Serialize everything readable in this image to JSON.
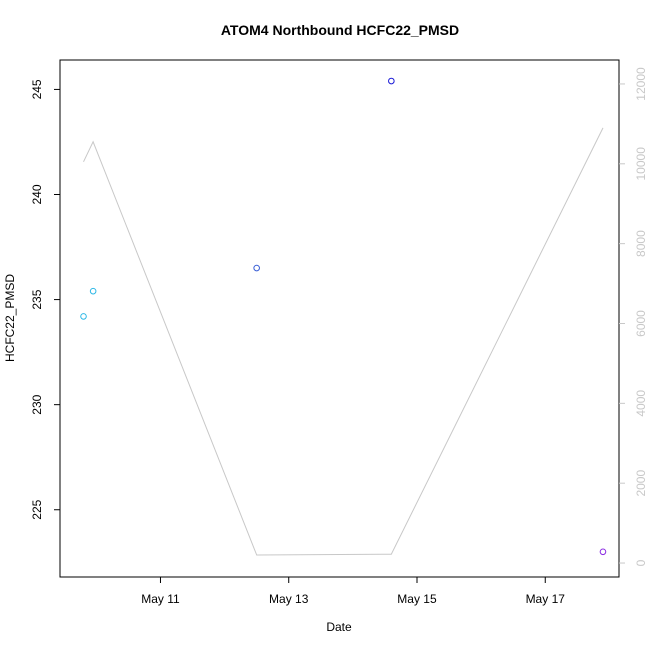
{
  "chart_data": {
    "type": "scatter",
    "title": "ATOM4 Northbound HCFC22_PMSD",
    "xlabel": "Date",
    "ylabel": "HCFC22_PMSD",
    "x_ticks": [
      "May 11",
      "May 13",
      "May 15",
      "May 17"
    ],
    "x_tick_values": [
      "2024-05-11",
      "2024-05-13",
      "2024-05-15",
      "2024-05-17"
    ],
    "y_ticks": [
      225,
      230,
      235,
      240,
      245
    ],
    "y2_ticks": [
      0,
      2000,
      4000,
      6000,
      8000,
      10000,
      12000
    ],
    "ylim": [
      221.8,
      246.4
    ],
    "y2lim": [
      -350,
      12600
    ],
    "xlim": [
      "2024-05-09T10:24",
      "2024-05-18T03:36"
    ],
    "grid": false,
    "legend": "none",
    "points": [
      {
        "x": "2024-05-09T19:12",
        "y": 234.2,
        "color": "#2eb8e6"
      },
      {
        "x": "2024-05-09T22:48",
        "y": 235.4,
        "color": "#2eb8e6"
      },
      {
        "x": "2024-05-12T12:00",
        "y": 236.5,
        "color": "#3a5fd6"
      },
      {
        "x": "2024-05-14T14:24",
        "y": 245.4,
        "color": "#1a1ad6"
      },
      {
        "x": "2024-05-17T21:36",
        "y": 223.0,
        "color": "#8a2be2"
      }
    ],
    "line": {
      "color": "#c8c8c8",
      "axis": "right",
      "points": [
        {
          "x": "2024-05-09T19:12",
          "y": 10050
        },
        {
          "x": "2024-05-09T22:48",
          "y": 10550
        },
        {
          "x": "2024-05-12T12:00",
          "y": 200
        },
        {
          "x": "2024-05-14T14:24",
          "y": 220
        },
        {
          "x": "2024-05-17T21:36",
          "y": 10900
        }
      ]
    }
  }
}
